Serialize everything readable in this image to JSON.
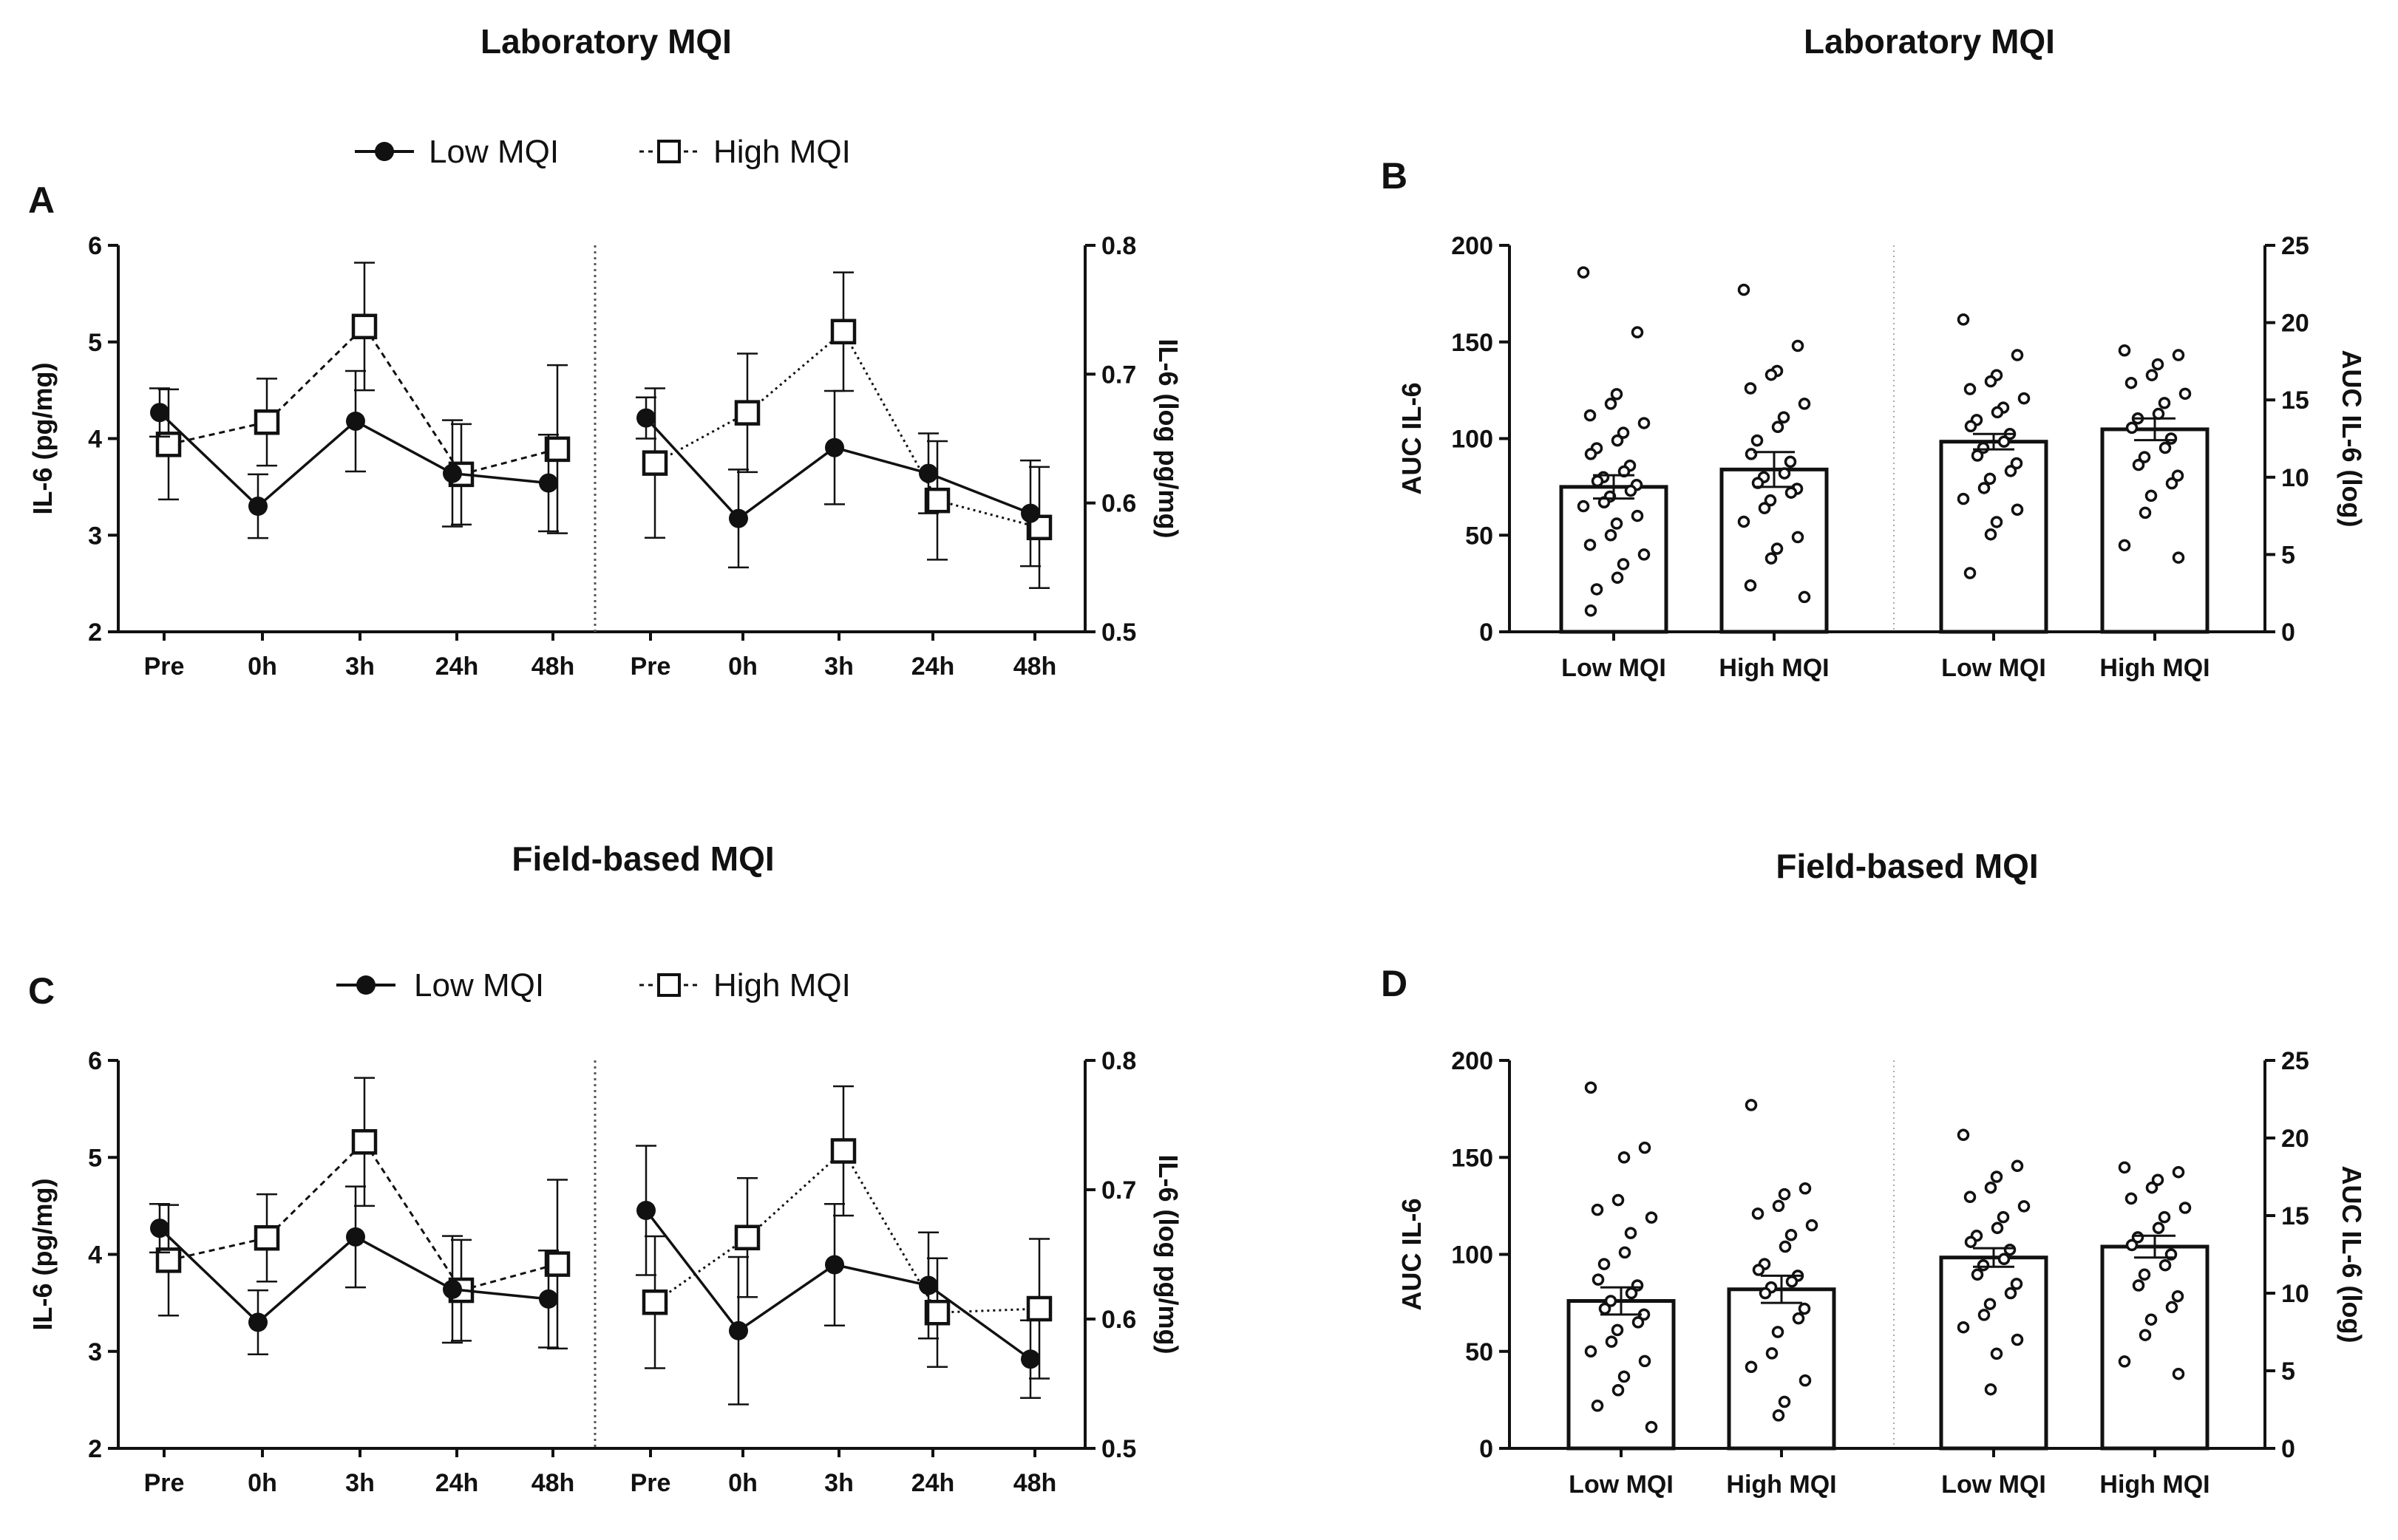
{
  "figure": {
    "panel_a_title": "Laboratory MQI",
    "panel_b_title": "Laboratory MQI",
    "panel_c_title": "Field-based MQI",
    "panel_d_title": "Field-based MQI",
    "panel_letters": [
      "A",
      "B",
      "C",
      "D"
    ],
    "legend": {
      "low": "Low MQI",
      "high": "High MQI"
    },
    "colors": {
      "ink": "#111111",
      "marker_fill_high": "#ffffff",
      "bar_fill": "#ffffff"
    }
  },
  "chart_data": [
    {
      "id": "A",
      "type": "line",
      "title": "Laboratory MQI",
      "categories": [
        "Pre",
        "0h",
        "3h",
        "24h",
        "48h"
      ],
      "left": {
        "ylabel": "IL-6 (pg/mg)",
        "ylim": [
          2,
          6
        ],
        "yticks": [
          "2",
          "3",
          "4",
          "5",
          "6"
        ],
        "series": [
          {
            "name": "Low MQI",
            "values": [
              4.27,
              3.3,
              4.18,
              3.64,
              3.54
            ],
            "err": [
              0.25,
              0.33,
              0.52,
              0.55,
              0.5
            ]
          },
          {
            "name": "High MQI",
            "values": [
              3.94,
              4.17,
              5.16,
              3.63,
              3.89
            ],
            "err": [
              0.57,
              0.45,
              0.66,
              0.52,
              0.87
            ]
          }
        ]
      },
      "right": {
        "ylabel": "IL-6 (log pg/mg)",
        "ylim": [
          0.5,
          0.8
        ],
        "yticks": [
          "0.5",
          "0.6",
          "0.7",
          "0.8"
        ],
        "series": [
          {
            "name": "Low MQI",
            "values": [
              0.666,
              0.588,
              0.643,
              0.623,
              0.592
            ],
            "err": [
              0.016,
              0.038,
              0.044,
              0.031,
              0.041
            ]
          },
          {
            "name": "High MQI",
            "values": [
              0.631,
              0.67,
              0.733,
              0.602,
              0.581
            ],
            "err": [
              0.058,
              0.046,
              0.046,
              0.046,
              0.047
            ]
          }
        ]
      }
    },
    {
      "id": "B",
      "type": "bar",
      "title": "Laboratory MQI",
      "categories_left": [
        "Low MQI",
        "High MQI"
      ],
      "categories_right": [
        "Low MQI",
        "High MQI"
      ],
      "left": {
        "ylabel": "AUC IL-6",
        "ylim": [
          0,
          200
        ],
        "yticks": [
          "0",
          "50",
          "100",
          "150",
          "200"
        ],
        "bars": [
          {
            "name": "Low MQI",
            "value": 75,
            "err": 6,
            "points": [
              186,
              155,
              123,
              118,
              112,
              108,
              103,
              99,
              95,
              92,
              86,
              83,
              80,
              78,
              76,
              73,
              70,
              67,
              65,
              60,
              56,
              50,
              45,
              40,
              35,
              28,
              22,
              11
            ]
          },
          {
            "name": "High MQI",
            "value": 84,
            "err": 9,
            "points": [
              177,
              148,
              135,
              133,
              126,
              118,
              111,
              106,
              99,
              92,
              88,
              82,
              80,
              77,
              74,
              72,
              68,
              64,
              57,
              49,
              43,
              38,
              24,
              18
            ]
          }
        ]
      },
      "right": {
        "ylabel": "AUC IL-6 (log)",
        "ylim": [
          0,
          25
        ],
        "yticks": [
          "0",
          "5",
          "10",
          "15",
          "20",
          "25"
        ],
        "bars": [
          {
            "name": "Low MQI",
            "value": 12.3,
            "err": 0.5,
            "points": [
              20.2,
              17.9,
              16.6,
              16.2,
              15.7,
              15.1,
              14.5,
              14.2,
              13.7,
              13.3,
              12.8,
              12.3,
              11.9,
              11.4,
              10.9,
              10.4,
              9.9,
              9.3,
              8.6,
              7.9,
              7.1,
              6.3,
              3.8
            ]
          },
          {
            "name": "High MQI",
            "value": 13.1,
            "err": 0.7,
            "points": [
              18.2,
              17.9,
              17.3,
              16.6,
              16.1,
              15.4,
              14.8,
              14.1,
              13.8,
              13.2,
              12.5,
              11.9,
              11.3,
              10.8,
              10.1,
              9.6,
              8.8,
              7.7,
              5.6,
              4.8
            ]
          }
        ]
      }
    },
    {
      "id": "C",
      "type": "line",
      "title": "Field-based MQI",
      "categories": [
        "Pre",
        "0h",
        "3h",
        "24h",
        "48h"
      ],
      "left": {
        "ylabel": "IL-6 (pg/mg)",
        "ylim": [
          2,
          6
        ],
        "yticks": [
          "2",
          "3",
          "4",
          "5",
          "6"
        ],
        "series": [
          {
            "name": "Low MQI",
            "values": [
              4.27,
              3.3,
              4.18,
              3.64,
              3.54
            ],
            "err": [
              0.25,
              0.33,
              0.52,
              0.55,
              0.5
            ]
          },
          {
            "name": "High MQI",
            "values": [
              3.94,
              4.17,
              5.16,
              3.63,
              3.9
            ],
            "err": [
              0.57,
              0.45,
              0.66,
              0.52,
              0.87
            ]
          }
        ]
      },
      "right": {
        "ylabel": "IL-6 (log pg/mg)",
        "ylim": [
          0.5,
          0.8
        ],
        "yticks": [
          "0.5",
          "0.6",
          "0.7",
          "0.8"
        ],
        "series": [
          {
            "name": "Low MQI",
            "values": [
              0.684,
              0.591,
              0.642,
              0.626,
              0.569
            ],
            "err": [
              0.05,
              0.057,
              0.047,
              0.041,
              0.03
            ]
          },
          {
            "name": "High MQI",
            "values": [
              0.613,
              0.663,
              0.73,
              0.605,
              0.608
            ],
            "err": [
              0.051,
              0.046,
              0.05,
              0.042,
              0.054
            ]
          }
        ]
      }
    },
    {
      "id": "D",
      "type": "bar",
      "title": "Field-based MQI",
      "categories_left": [
        "Low MQI",
        "High MQI"
      ],
      "categories_right": [
        "Low MQI",
        "High MQI"
      ],
      "left": {
        "ylabel": "AUC IL-6",
        "ylim": [
          0,
          200
        ],
        "yticks": [
          "0",
          "50",
          "100",
          "150",
          "200"
        ],
        "bars": [
          {
            "name": "Low MQI",
            "value": 76,
            "err": 7,
            "points": [
              186,
              155,
              150,
              128,
              123,
              119,
              111,
              101,
              95,
              87,
              84,
              80,
              76,
              72,
              69,
              65,
              61,
              55,
              50,
              45,
              37,
              30,
              22,
              11
            ]
          },
          {
            "name": "High MQI",
            "value": 82,
            "err": 7,
            "points": [
              177,
              134,
              131,
              125,
              121,
              115,
              110,
              104,
              95,
              92,
              89,
              86,
              83,
              80,
              72,
              67,
              60,
              49,
              42,
              35,
              24,
              17
            ]
          }
        ]
      },
      "right": {
        "ylabel": "AUC IL-6 (log)",
        "ylim": [
          0,
          25
        ],
        "yticks": [
          "0",
          "5",
          "10",
          "15",
          "20",
          "25"
        ],
        "bars": [
          {
            "name": "Low MQI",
            "value": 12.3,
            "err": 0.6,
            "points": [
              20.2,
              18.2,
              17.5,
              16.8,
              16.2,
              15.6,
              14.9,
              14.2,
              13.7,
              13.3,
              12.8,
              12.2,
              11.8,
              11.2,
              10.6,
              10.0,
              9.3,
              8.6,
              7.8,
              7.0,
              6.1,
              3.8
            ]
          },
          {
            "name": "High MQI",
            "value": 13.0,
            "err": 0.7,
            "points": [
              18.1,
              17.8,
              17.3,
              16.8,
              16.1,
              15.5,
              14.9,
              14.2,
              13.6,
              13.1,
              12.5,
              11.8,
              11.2,
              10.5,
              9.8,
              9.1,
              8.3,
              7.3,
              5.6,
              4.8
            ]
          }
        ]
      }
    }
  ]
}
